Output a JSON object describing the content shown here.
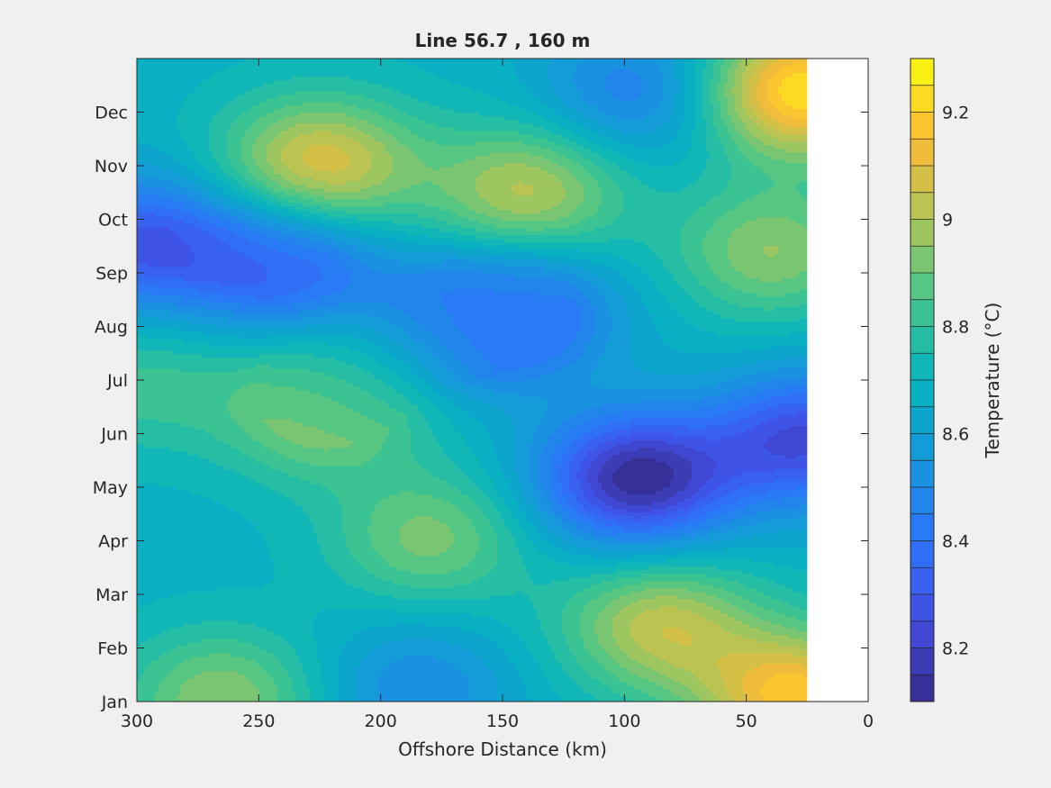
{
  "chart_data": {
    "type": "heatmap",
    "title": "Line 56.7 , 160 m",
    "xlabel": "Offshore Distance (km)",
    "ylabel": "",
    "x_reversed": true,
    "xlim": [
      0,
      300
    ],
    "ylim": [
      0,
      12
    ],
    "xticks": [
      300,
      250,
      200,
      150,
      100,
      50,
      0
    ],
    "xtick_labels": [
      "300",
      "250",
      "200",
      "150",
      "100",
      "50",
      "0"
    ],
    "yticks": [
      0,
      1,
      2,
      3,
      4,
      5,
      6,
      7,
      8,
      9,
      10,
      11
    ],
    "ytick_labels": [
      "Jan",
      "Feb",
      "Mar",
      "Apr",
      "May",
      "Jun",
      "Jul",
      "Aug",
      "Sep",
      "Oct",
      "Nov",
      "Dec"
    ],
    "data_xmin_km": 25,
    "colormap": "parula",
    "colorbar": {
      "label": "Temperature (°C)",
      "min": 8.1,
      "max": 9.3,
      "levels": 24,
      "ticks": [
        8.2,
        8.4,
        8.6,
        8.8,
        9.0,
        9.2
      ],
      "tick_labels": [
        "8.2",
        "8.4",
        "8.6",
        "8.8",
        "9",
        "9.2"
      ]
    },
    "background_value": 8.68,
    "features": [
      {
        "x": 95,
        "y": 4.15,
        "value": 8.12
      },
      {
        "x": 25,
        "y": 4.9,
        "value": 8.25
      },
      {
        "x": 300,
        "y": 8.55,
        "value": 8.3
      },
      {
        "x": 240,
        "y": 8.15,
        "value": 8.32
      },
      {
        "x": 165,
        "y": 7.05,
        "value": 8.42
      },
      {
        "x": 140,
        "y": 7.3,
        "value": 8.44
      },
      {
        "x": 95,
        "y": 11.4,
        "value": 8.45
      },
      {
        "x": 185,
        "y": 0.25,
        "value": 8.5
      },
      {
        "x": 210,
        "y": 6.2,
        "value": 8.72
      },
      {
        "x": 225,
        "y": 10.0,
        "value": 9.1
      },
      {
        "x": 140,
        "y": 9.5,
        "value": 9.02
      },
      {
        "x": 225,
        "y": 5.4,
        "value": 8.95
      },
      {
        "x": 180,
        "y": 3.05,
        "value": 8.92
      },
      {
        "x": 85,
        "y": 1.4,
        "value": 9.03
      },
      {
        "x": 28,
        "y": 0.05,
        "value": 9.18
      },
      {
        "x": 28,
        "y": 11.4,
        "value": 9.25
      },
      {
        "x": 40,
        "y": 8.4,
        "value": 8.95
      },
      {
        "x": 265,
        "y": 0.05,
        "value": 8.95
      },
      {
        "x": 298,
        "y": 5.9,
        "value": 8.82
      }
    ]
  }
}
